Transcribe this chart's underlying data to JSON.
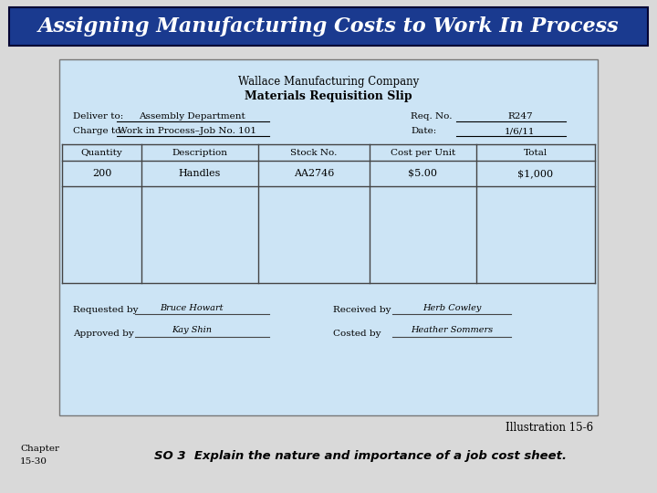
{
  "title": "Assigning Manufacturing Costs to Work In Process",
  "title_bg": "#1a3a8f",
  "title_color": "#ffffff",
  "title_fontsize": 16,
  "form_bg": "#cce4f5",
  "bg_color": "#d9d9d9",
  "company_name": "Wallace Manufacturing Company",
  "form_title": "Materials Requisition Slip",
  "deliver_label": "Deliver to:",
  "deliver_value": "Assembly Department",
  "charge_label": "Charge to:",
  "charge_value": "Work in Process–Job No. 101",
  "req_label": "Req. No.",
  "req_value": "R247",
  "date_label": "Date:",
  "date_value": "1/6/11",
  "col_headers": [
    "Quantity",
    "Description",
    "Stock No.",
    "Cost per Unit",
    "Total"
  ],
  "row_data": [
    "200",
    "Handles",
    "AA2746",
    "$5.00",
    "$1,000"
  ],
  "req_by_label": "Requested by",
  "req_by_value": "Bruce Howart",
  "recv_by_label": "Received by",
  "recv_by_value": "Herb Cowley",
  "appr_by_label": "Approved by",
  "appr_by_value": "Kay Shin",
  "cost_by_label": "Costed by",
  "cost_by_value": "Heather Sommers",
  "illustration": "Illustration 15-6",
  "chapter": "Chapter\n15-30",
  "so_text": "SO 3  Explain the nature and importance of a job cost sheet."
}
